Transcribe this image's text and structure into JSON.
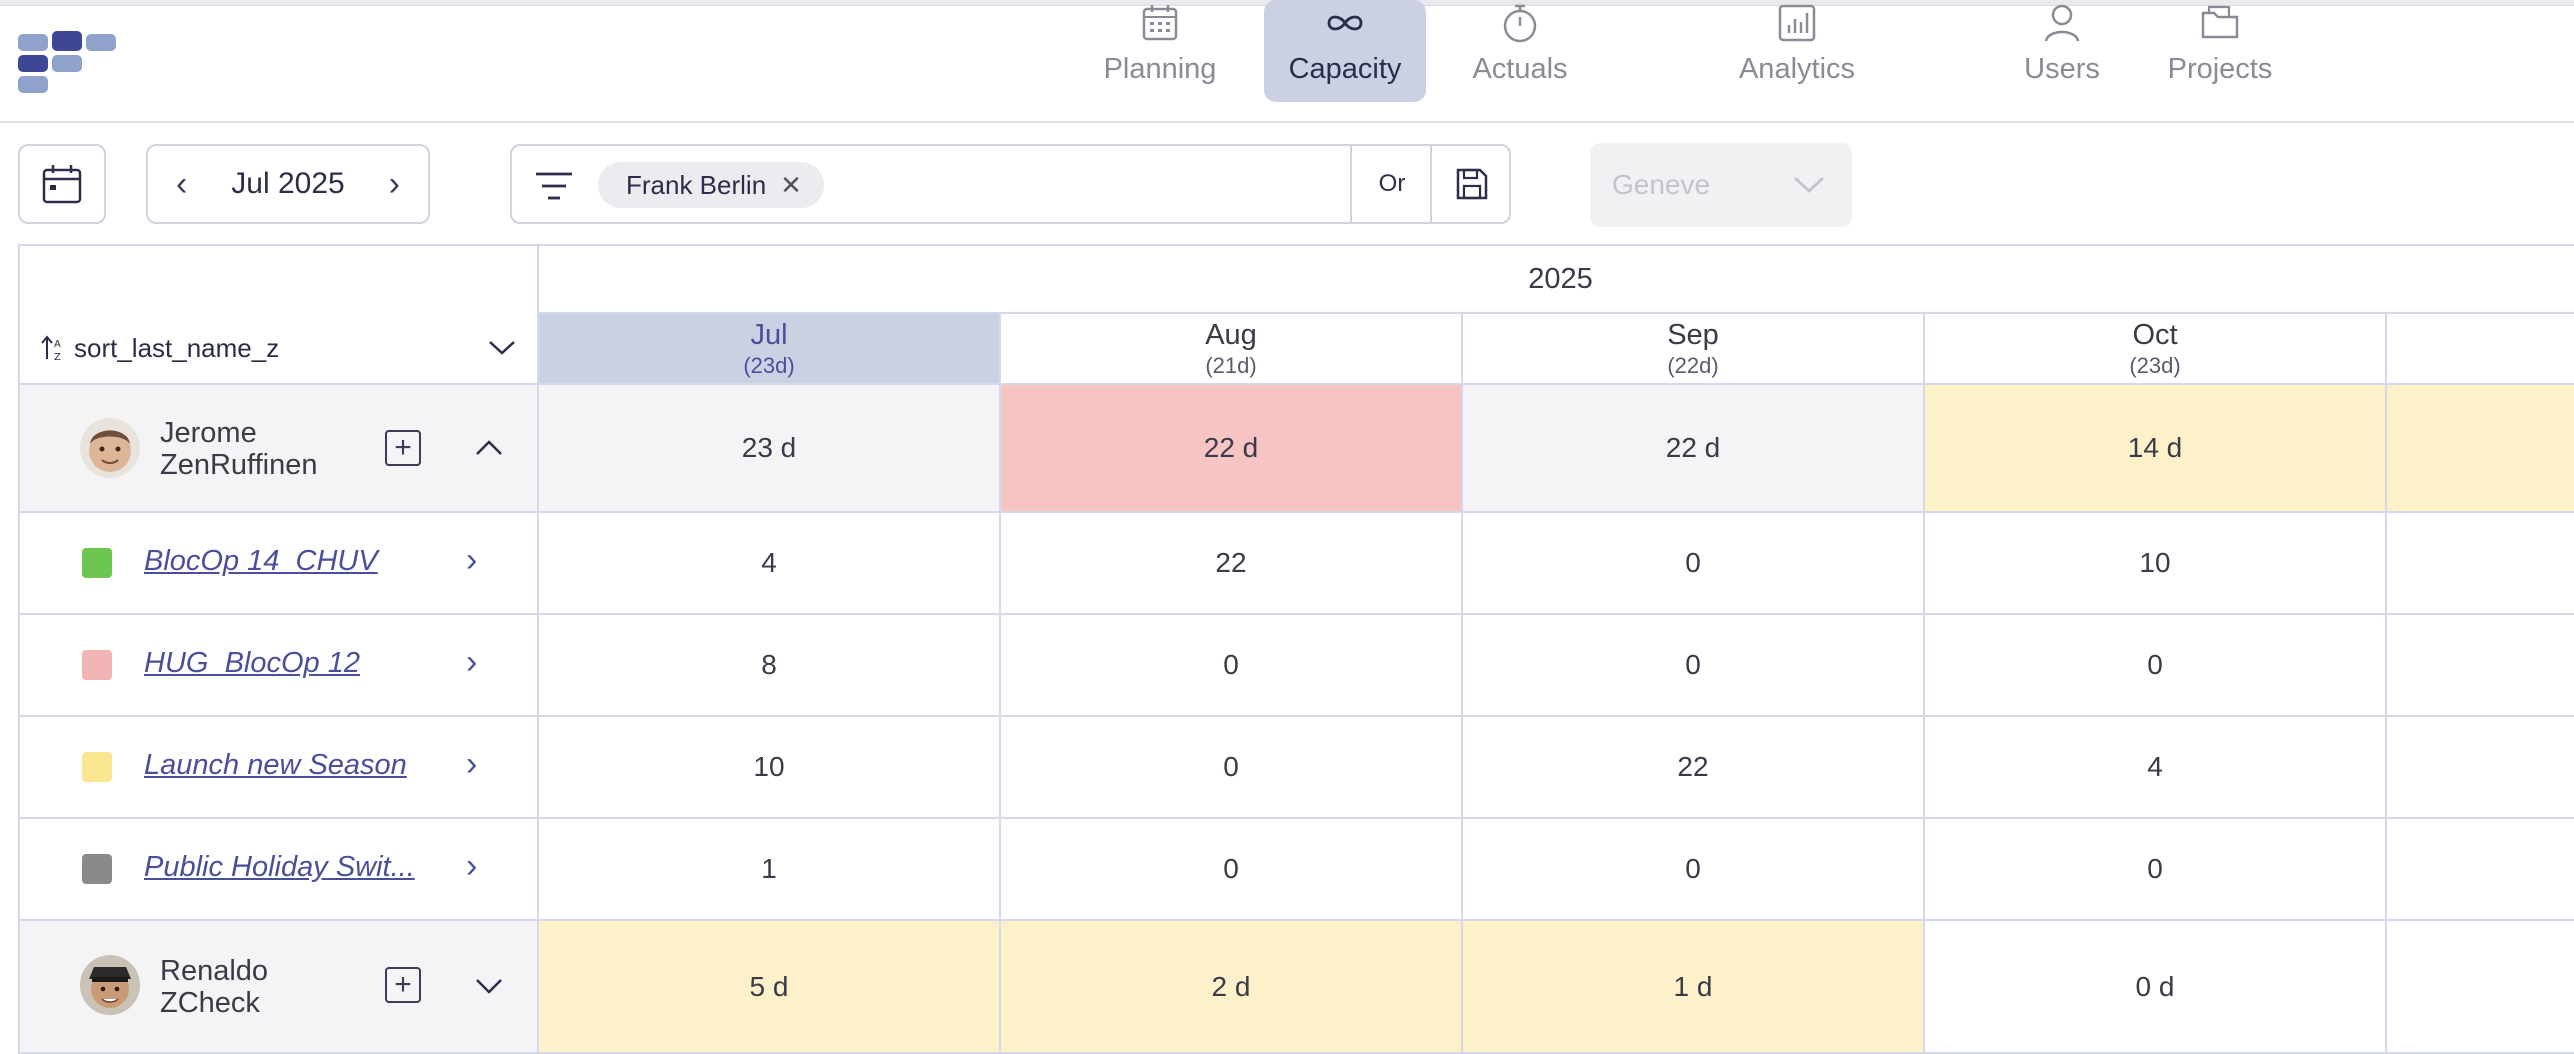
{
  "nav": {
    "tabs": [
      {
        "label": "Planning",
        "icon": "calendar-icon",
        "active": false
      },
      {
        "label": "Capacity",
        "icon": "infinity-icon",
        "active": true
      },
      {
        "label": "Actuals",
        "icon": "stopwatch-icon",
        "active": false
      },
      {
        "label": "Analytics",
        "icon": "bar-chart-icon",
        "active": false
      },
      {
        "label": "Users",
        "icon": "user-icon",
        "active": false
      },
      {
        "label": "Projects",
        "icon": "folder-icon",
        "active": false
      }
    ]
  },
  "toolbar": {
    "period": "Jul 2025",
    "filter_chip": "Frank Berlin",
    "chip_close": "✕",
    "or_label": "Or",
    "location_placeholder": "Geneve"
  },
  "table": {
    "year": "2025",
    "sort_label": "sort_last_name_z",
    "months": [
      {
        "name": "Jul",
        "days": "(23d)",
        "current": true
      },
      {
        "name": "Aug",
        "days": "(21d)",
        "current": false
      },
      {
        "name": "Sep",
        "days": "(22d)",
        "current": false
      },
      {
        "name": "Oct",
        "days": "(23d)",
        "current": false
      }
    ],
    "users": [
      {
        "first": "Jerome",
        "last": "ZenRuffinen",
        "expanded": true,
        "totals": [
          "23 d",
          "22 d",
          "22 d",
          "14 d"
        ],
        "status": [
          "neutral",
          "over",
          "neutral",
          "under"
        ],
        "projects": [
          {
            "name": "BlocOp 14_CHUV",
            "color": "#6cc64f",
            "values": [
              "4",
              "22",
              "0",
              "10"
            ]
          },
          {
            "name": "HUG_BlocOp 12",
            "color": "#f0b4b4",
            "values": [
              "8",
              "0",
              "0",
              "0"
            ]
          },
          {
            "name": "Launch new Season",
            "color": "#fbe690",
            "values": [
              "10",
              "0",
              "22",
              "4"
            ]
          },
          {
            "name": "Public Holiday Swit...",
            "color": "#8a8a8a",
            "values": [
              "1",
              "0",
              "0",
              "0"
            ]
          }
        ]
      },
      {
        "first": "Renaldo",
        "last": "ZCheck",
        "expanded": false,
        "totals": [
          "5 d",
          "2 d",
          "1 d",
          "0 d"
        ],
        "status": [
          "under",
          "under",
          "under",
          "none"
        ]
      }
    ]
  },
  "colors": {
    "accent": "#cbd1e3",
    "link": "#4a4f9a",
    "over": "#f5c4c3",
    "under": "#fcf1c9",
    "neutral": "#f4f4f6"
  }
}
